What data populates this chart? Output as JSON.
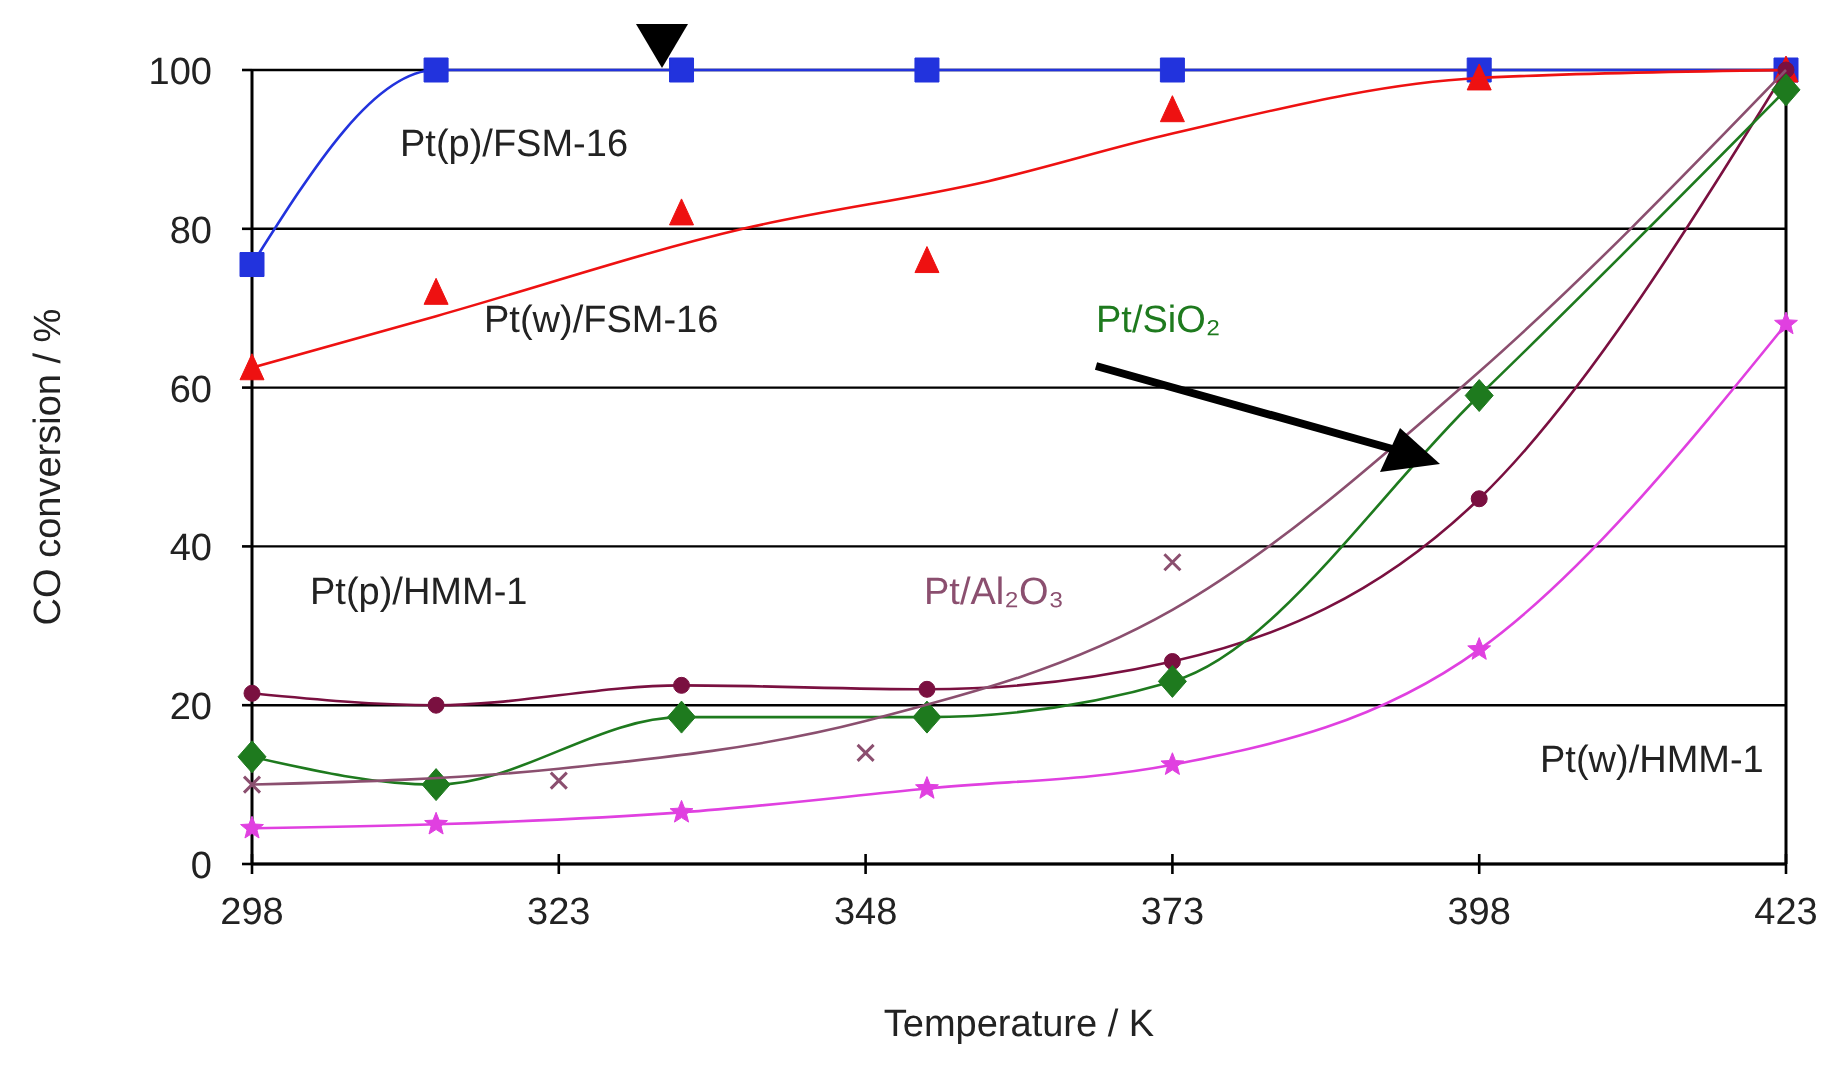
{
  "chart_data": {
    "type": "line",
    "xlabel": "Temperature / K",
    "ylabel": "CO conversion / %",
    "xlim": [
      298,
      423
    ],
    "xticks": [
      298,
      323,
      348,
      373,
      398,
      423
    ],
    "ylim": [
      0,
      100
    ],
    "yticks": [
      0,
      20,
      40,
      60,
      80,
      100
    ],
    "grid": "y",
    "line_style": "solid",
    "series": [
      {
        "name": "Pt(p)/FSM-16",
        "color": "#2233dd",
        "marker": "square",
        "x": [
          298,
          313,
          333,
          353,
          373,
          398,
          423
        ],
        "values": [
          75.5,
          100,
          100,
          100,
          100,
          100,
          100
        ]
      },
      {
        "name": "Pt(w)/FSM-16",
        "type": "scatter",
        "color": "#ee1111",
        "marker": "triangle",
        "x": [
          298,
          313,
          333,
          353,
          373,
          398,
          423
        ],
        "values": [
          62.5,
          72,
          82,
          76,
          95,
          99,
          100
        ]
      },
      {
        "type": "line",
        "color": "#ee1111",
        "marker": "none",
        "x": [
          298,
          313,
          338,
          358,
          373,
          398,
          423
        ],
        "values": [
          62.5,
          69,
          80,
          86,
          92,
          99,
          100
        ]
      },
      {
        "name": "Pt(p)/HMM-1",
        "color": "#7a1040",
        "marker": "circle",
        "x": [
          298,
          313,
          333,
          353,
          373,
          398,
          423
        ],
        "values": [
          21.5,
          20,
          22.5,
          22,
          25.5,
          46,
          100
        ]
      },
      {
        "name": "Pt/SiO₂",
        "color": "#1e7a1e",
        "marker": "diamond",
        "x": [
          298,
          313,
          333,
          353,
          373,
          398,
          423
        ],
        "values": [
          13.5,
          10,
          18.5,
          18.5,
          23,
          59,
          97.5
        ]
      },
      {
        "name": "Pt/Al₂O₃",
        "type": "scatter",
        "color": "#8b4f6f",
        "marker": "cross",
        "x": [
          298,
          323,
          348,
          373
        ],
        "values": [
          10,
          10.5,
          14,
          38
        ]
      },
      {
        "type": "line",
        "color": "#8b4f6f",
        "marker": "none",
        "x": [
          298,
          323,
          348,
          373,
          398,
          423
        ],
        "values": [
          10,
          12,
          18,
          32,
          62,
          100
        ]
      },
      {
        "name": "Pt(w)/HMM-1",
        "color": "#e040e0",
        "marker": "star",
        "x": [
          298,
          313,
          333,
          353,
          373,
          398,
          423
        ],
        "values": [
          4.5,
          5,
          6.5,
          9.5,
          12.5,
          27,
          68
        ]
      }
    ]
  }
}
